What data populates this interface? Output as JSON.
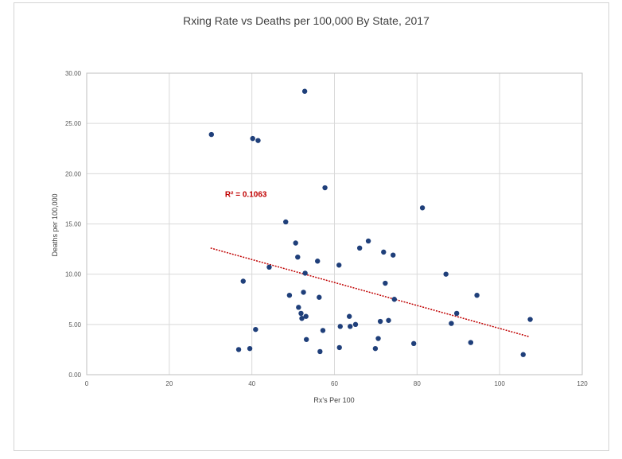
{
  "chart_data": {
    "type": "scatter",
    "title": "Rxing Rate vs Deaths per 100,000 By State, 2017",
    "xlabel": "Rx's Per 100",
    "ylabel": "Deaths per 100,000",
    "xlim": [
      0,
      120
    ],
    "ylim": [
      0,
      30
    ],
    "x_ticks": [
      "0",
      "20",
      "40",
      "60",
      "80",
      "100",
      "120"
    ],
    "y_ticks": [
      "0.00",
      "5.00",
      "10.00",
      "15.00",
      "20.00",
      "25.00",
      "30.00"
    ],
    "grid": true,
    "point_color": "#1f3f7a",
    "trendline": {
      "type": "linear",
      "color": "#c00000",
      "x": [
        30,
        107
      ],
      "y": [
        12.6,
        3.8
      ]
    },
    "annotation": {
      "label": "R² = 0.1063",
      "x": 33.5,
      "y": 18.0
    },
    "points": [
      {
        "x": 30.2,
        "y": 23.9
      },
      {
        "x": 36.8,
        "y": 2.5
      },
      {
        "x": 37.9,
        "y": 9.3
      },
      {
        "x": 39.5,
        "y": 2.6
      },
      {
        "x": 40.2,
        "y": 23.5
      },
      {
        "x": 40.9,
        "y": 4.5
      },
      {
        "x": 41.5,
        "y": 23.3
      },
      {
        "x": 44.2,
        "y": 10.7
      },
      {
        "x": 48.2,
        "y": 15.2
      },
      {
        "x": 49.1,
        "y": 7.9
      },
      {
        "x": 50.6,
        "y": 13.1
      },
      {
        "x": 51.1,
        "y": 11.7
      },
      {
        "x": 51.3,
        "y": 6.7
      },
      {
        "x": 51.9,
        "y": 6.1
      },
      {
        "x": 52.1,
        "y": 5.6
      },
      {
        "x": 52.5,
        "y": 8.2
      },
      {
        "x": 52.8,
        "y": 28.2
      },
      {
        "x": 52.9,
        "y": 10.1
      },
      {
        "x": 53.1,
        "y": 5.8
      },
      {
        "x": 53.2,
        "y": 3.5
      },
      {
        "x": 55.9,
        "y": 11.3
      },
      {
        "x": 56.3,
        "y": 7.7
      },
      {
        "x": 56.5,
        "y": 2.3
      },
      {
        "x": 57.2,
        "y": 4.4
      },
      {
        "x": 57.7,
        "y": 18.6
      },
      {
        "x": 61.1,
        "y": 10.9
      },
      {
        "x": 61.2,
        "y": 2.7
      },
      {
        "x": 61.4,
        "y": 4.8
      },
      {
        "x": 63.6,
        "y": 5.8
      },
      {
        "x": 63.8,
        "y": 4.8
      },
      {
        "x": 65.1,
        "y": 5.0
      },
      {
        "x": 66.1,
        "y": 12.6
      },
      {
        "x": 68.2,
        "y": 13.3
      },
      {
        "x": 69.9,
        "y": 2.6
      },
      {
        "x": 70.6,
        "y": 3.6
      },
      {
        "x": 71.1,
        "y": 5.3
      },
      {
        "x": 71.9,
        "y": 12.2
      },
      {
        "x": 72.3,
        "y": 9.1
      },
      {
        "x": 73.1,
        "y": 5.4
      },
      {
        "x": 74.2,
        "y": 11.9
      },
      {
        "x": 74.5,
        "y": 7.5
      },
      {
        "x": 79.2,
        "y": 3.1
      },
      {
        "x": 81.3,
        "y": 16.6
      },
      {
        "x": 87.0,
        "y": 10.0
      },
      {
        "x": 88.3,
        "y": 5.1
      },
      {
        "x": 89.6,
        "y": 6.1
      },
      {
        "x": 93.0,
        "y": 3.2
      },
      {
        "x": 94.5,
        "y": 7.9
      },
      {
        "x": 105.7,
        "y": 2.0
      },
      {
        "x": 107.4,
        "y": 5.5
      }
    ]
  }
}
